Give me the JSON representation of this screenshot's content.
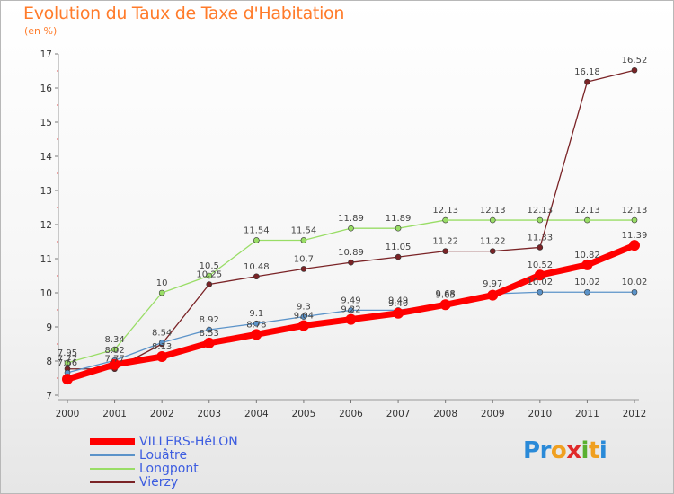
{
  "header": {
    "title": "Evolution du Taux de Taxe d'Habitation",
    "subtitle": "(en %)"
  },
  "chart_data": {
    "type": "line",
    "x": [
      2000,
      2001,
      2002,
      2003,
      2004,
      2005,
      2006,
      2007,
      2008,
      2009,
      2010,
      2011,
      2012
    ],
    "ylim": [
      7,
      17
    ],
    "yticks": [
      7,
      8,
      9,
      10,
      11,
      12,
      13,
      14,
      15,
      16,
      17
    ],
    "grid": false,
    "legend_position": "bottom-left",
    "series": [
      {
        "name": "VILLERS-HéLON",
        "color": "#ff0000",
        "values": [
          7.47,
          7.9,
          8.13,
          8.53,
          8.78,
          9.04,
          9.22,
          9.4,
          9.65,
          9.93,
          10.52,
          10.82,
          11.39
        ],
        "labels": [
          "",
          "",
          "8.13",
          "8.53",
          "8.78",
          "9.04",
          "9.22",
          "9.40",
          "9.65",
          "",
          "10.52",
          "10.82",
          "11.39"
        ]
      },
      {
        "name": "Louâtre",
        "color": "#5b93c9",
        "values": [
          7.66,
          8.02,
          8.54,
          8.92,
          9.1,
          9.3,
          9.49,
          9.49,
          9.68,
          9.97,
          10.02,
          10.02,
          10.02
        ],
        "labels": [
          "7.66",
          "8.02",
          "8.54",
          "8.92",
          "9.1",
          "9.3",
          "9.49",
          "9.49",
          "9.68",
          "9.97",
          "10.02",
          "10.02",
          "10.02"
        ]
      },
      {
        "name": "Longpont",
        "color": "#99dd66",
        "values": [
          7.95,
          8.34,
          10.0,
          10.5,
          11.54,
          11.54,
          11.89,
          11.89,
          12.13,
          12.13,
          12.13,
          12.13,
          12.13
        ],
        "labels": [
          "7.95",
          "8.34",
          "10",
          "10.5",
          "11.54",
          "11.54",
          "11.89",
          "11.89",
          "12.13",
          "12.13",
          "12.13",
          "12.13",
          "12.13"
        ]
      },
      {
        "name": "Vierzy",
        "color": "#7a2326",
        "values": [
          7.77,
          7.77,
          8.5,
          10.25,
          10.48,
          10.7,
          10.89,
          11.05,
          11.22,
          11.22,
          11.33,
          16.18,
          16.52
        ],
        "labels": [
          "7.77",
          "7.77",
          "",
          "10.25",
          "10.48",
          "10.7",
          "10.89",
          "11.05",
          "11.22",
          "11.22",
          "11.33",
          "16.18",
          "16.52"
        ]
      }
    ]
  },
  "legend": {
    "items": [
      {
        "label": "VILLERS-HéLON",
        "color": "#ff0000"
      },
      {
        "label": "Louâtre",
        "color": "#5b93c9"
      },
      {
        "label": "Longpont",
        "color": "#99dd66"
      },
      {
        "label": "Vierzy",
        "color": "#7a2326"
      }
    ]
  },
  "brand": {
    "logo_text": "Proxiti",
    "letters": [
      {
        "ch": "P",
        "color": "#2a8ad8"
      },
      {
        "ch": "r",
        "color": "#2a8ad8"
      },
      {
        "ch": "o",
        "color": "#f0a020"
      },
      {
        "ch": "x",
        "color": "#e02a2a"
      },
      {
        "ch": "i",
        "color": "#5ab030"
      },
      {
        "ch": "t",
        "color": "#f0a020"
      },
      {
        "ch": "i",
        "color": "#2a8ad8"
      }
    ]
  }
}
